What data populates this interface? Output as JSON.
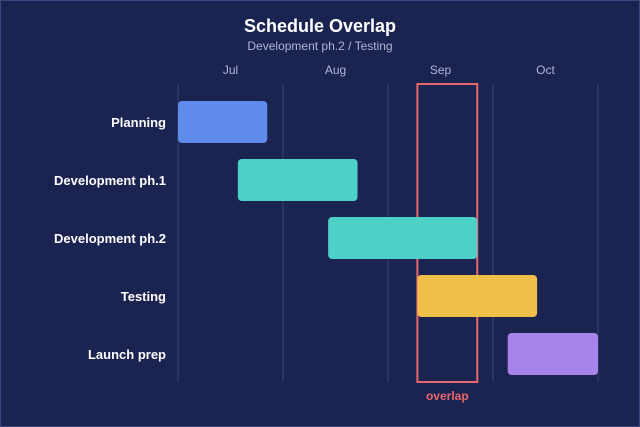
{
  "chart_data": {
    "type": "gantt",
    "title": "Schedule Overlap",
    "subtitle": "Development ph.2 / Testing",
    "x_ticks": [
      "Jul",
      "Aug",
      "Sep",
      "Oct"
    ],
    "x_unit": "months (start of Jun = 0)",
    "xlim": [
      0,
      4
    ],
    "grid": true,
    "tasks": [
      {
        "name": "Planning",
        "start": 0.0,
        "end": 0.85,
        "color": "#5f8bec"
      },
      {
        "name": "Development ph.1",
        "start": 0.57,
        "end": 1.71,
        "color": "#4dd1c6"
      },
      {
        "name": "Development ph.2",
        "start": 1.43,
        "end": 2.85,
        "color": "#4dd1c6"
      },
      {
        "name": "Testing",
        "start": 2.28,
        "end": 3.42,
        "color": "#f0bf47"
      },
      {
        "name": "Launch prep",
        "start": 3.14,
        "end": 4.0,
        "color": "#a884ea"
      }
    ],
    "highlight": {
      "label": "overlap",
      "start": 2.28,
      "end": 2.85,
      "color": "#e8686e"
    }
  }
}
